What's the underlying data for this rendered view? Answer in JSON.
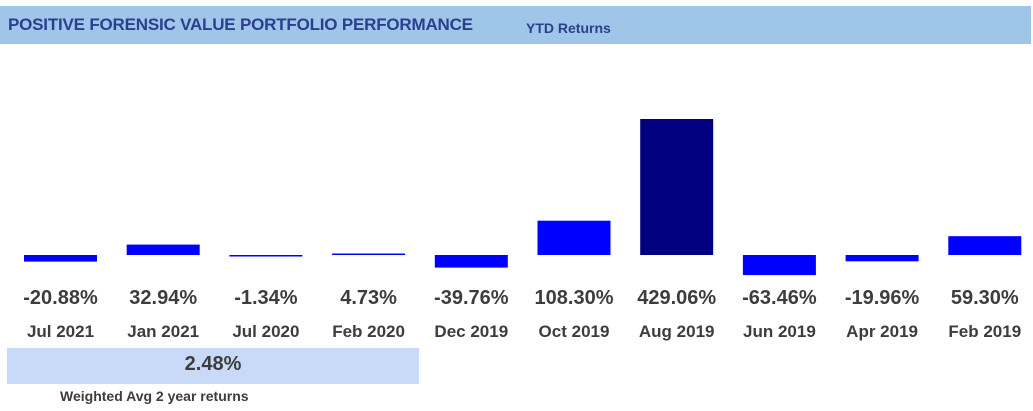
{
  "header": {
    "title": "POSITIVE FORENSIC VALUE PORTFOLIO PERFORMANCE",
    "subtitle": "YTD Returns"
  },
  "chart_data": {
    "type": "bar",
    "categories": [
      "Jul 2021",
      "Jan 2021",
      "Jul 2020",
      "Feb 2020",
      "Dec 2019",
      "Oct 2019",
      "Aug 2019",
      "Jun 2019",
      "Apr 2019",
      "Feb 2019"
    ],
    "values": [
      -20.88,
      32.94,
      -1.34,
      4.73,
      -39.76,
      108.3,
      429.06,
      -63.46,
      -19.96,
      59.3
    ],
    "value_labels": [
      "-20.88%",
      "32.94%",
      "-1.34%",
      "4.73%",
      "-39.76%",
      "108.30%",
      "429.06%",
      "-63.46%",
      "-19.96%",
      "59.30%"
    ],
    "bar_color": "#0000ff",
    "highlight_color": "#000080",
    "highlight_index": 6,
    "grid": false
  },
  "summary": {
    "value": "2.48%",
    "label": "Weighted Avg 2 year returns",
    "background": "#c9daf8"
  }
}
